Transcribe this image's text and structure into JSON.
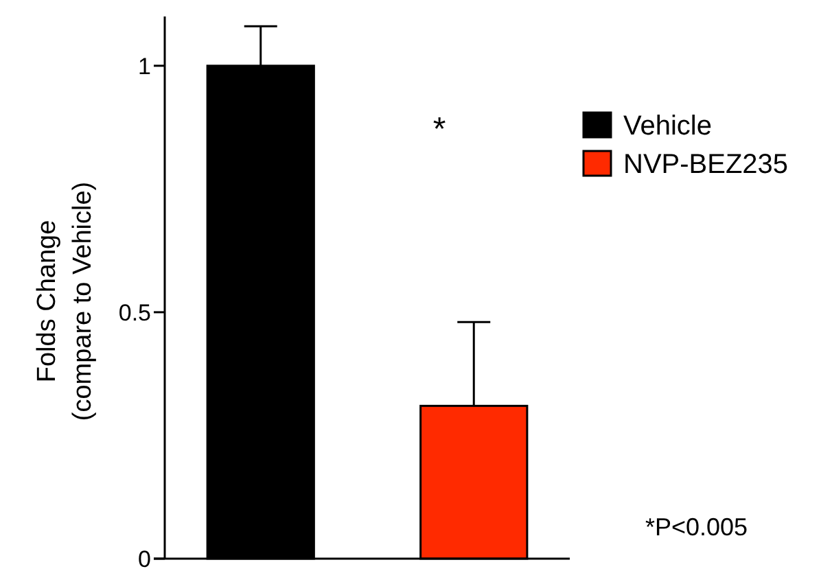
{
  "chart_data": {
    "type": "bar",
    "ylabel": "Folds Change\n(compare to Vehicle)",
    "categories": [
      null,
      null
    ],
    "series": [
      {
        "name": "Vehicle",
        "color": "#000000",
        "values": [
          1.0,
          null
        ],
        "errors": [
          [
            1.0,
            1.08
          ],
          null
        ]
      },
      {
        "name": "NVP-BEZ235",
        "color": "#ff2a00",
        "values": [
          null,
          0.31
        ],
        "errors": [
          null,
          [
            0.31,
            0.48
          ]
        ]
      }
    ],
    "ylim": [
      0,
      1.1
    ],
    "yticks": [
      0,
      0.5,
      1
    ],
    "grid": false,
    "legend": "right",
    "annotations": [
      "*",
      "*P<0.005"
    ]
  }
}
